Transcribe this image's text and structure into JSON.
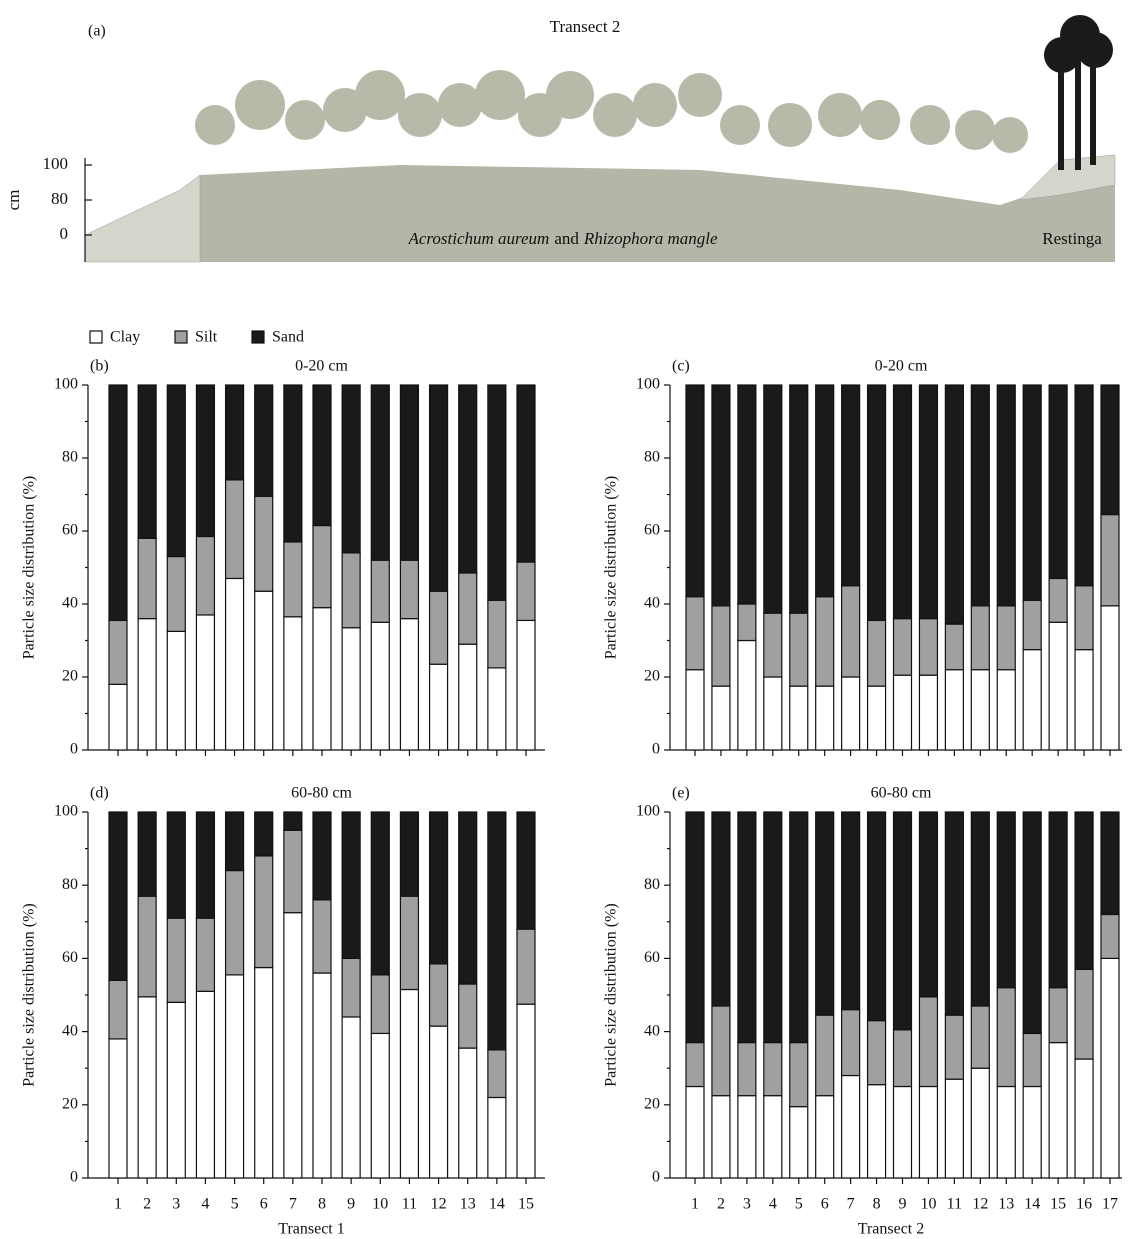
{
  "profile": {
    "label": "(a)",
    "title": "Transect 2",
    "y_label": "cm",
    "y_labels": [
      "100",
      "80",
      "0"
    ],
    "species_label": [
      "Acrostichum aureum",
      "and",
      "Rhizophora mangle"
    ],
    "zone_label": "Restinga"
  },
  "chart_data": [
    {
      "type": "stacked_bar",
      "panel": "(b)",
      "title": "0-20 cm",
      "y_label": "Particle size distribution (%)",
      "categories": [
        null,
        null,
        null,
        null,
        null,
        null,
        null,
        null,
        null,
        null,
        null,
        null,
        null,
        null,
        null
      ],
      "ylim": [
        0,
        100
      ],
      "yticks": [
        0,
        20,
        40,
        60,
        80,
        100
      ],
      "series": [
        {
          "name": "Clay",
          "color": "#ffffff",
          "values": [
            18,
            36,
            32.5,
            37,
            47,
            43.5,
            36.5,
            39,
            33.5,
            35,
            36,
            23.5,
            29,
            22.5,
            35.5
          ]
        },
        {
          "name": "Silt",
          "color": "#a0a0a0",
          "values": [
            17.5,
            22,
            20.5,
            21.5,
            27,
            26,
            20.5,
            22.5,
            20.5,
            17,
            16,
            20,
            19.5,
            18.5,
            16
          ]
        },
        {
          "name": "Sand",
          "color": "#1a1a1a",
          "values": [
            64.5,
            42,
            47,
            41.5,
            26,
            30.5,
            43,
            38.5,
            46,
            48,
            48,
            56.5,
            51.5,
            59,
            48.5
          ]
        }
      ]
    },
    {
      "type": "stacked_bar",
      "panel": "(c)",
      "title": "0-20 cm",
      "y_label": "Particle size distribution (%)",
      "categories": [
        null,
        null,
        null,
        null,
        null,
        null,
        null,
        null,
        null,
        null,
        null,
        null,
        null,
        null,
        null,
        null,
        null
      ],
      "ylim": [
        0,
        100
      ],
      "yticks": [
        0,
        20,
        40,
        60,
        80,
        100
      ],
      "series": [
        {
          "color": "#ffffff",
          "values": [
            22,
            17.5,
            30,
            20,
            17.5,
            17.5,
            20,
            17.5,
            20.5,
            20.5,
            22,
            22,
            22,
            27.5,
            35,
            27.5,
            39.5
          ]
        },
        {
          "color": "#a0a0a0",
          "values": [
            20,
            22,
            10,
            17.5,
            20,
            24.5,
            25,
            18,
            15.5,
            15.5,
            12.5,
            17.5,
            17.5,
            13.5,
            12,
            17.5,
            25
          ]
        },
        {
          "color": "#1a1a1a",
          "values": [
            58,
            60.5,
            60,
            62.5,
            62.5,
            58,
            55,
            64.5,
            64,
            64,
            65.5,
            60.5,
            60.5,
            59,
            53,
            55,
            35.5
          ]
        }
      ]
    },
    {
      "type": "stacked_bar",
      "panel": "(d)",
      "title": "60-80 cm",
      "y_label": "Particle size distribution (%)",
      "x_label": "Transect 1",
      "categories": [
        1,
        2,
        3,
        4,
        5,
        6,
        7,
        8,
        9,
        10,
        11,
        12,
        13,
        14,
        15
      ],
      "ylim": [
        0,
        100
      ],
      "yticks": [
        0,
        20,
        40,
        60,
        80,
        100
      ],
      "series": [
        {
          "color": "#ffffff",
          "values": [
            38,
            49.5,
            48,
            51,
            55.5,
            57.5,
            72.5,
            56,
            44,
            39.5,
            51.5,
            41.5,
            35.5,
            22,
            47.5
          ]
        },
        {
          "color": "#a0a0a0",
          "values": [
            16,
            27.5,
            23,
            20,
            28.5,
            30.5,
            22.5,
            20,
            16,
            16,
            25.5,
            17,
            17.5,
            13,
            20.5
          ]
        },
        {
          "color": "#1a1a1a",
          "values": [
            46,
            23,
            29,
            29,
            16,
            12,
            5,
            24,
            40,
            44.5,
            23,
            41.5,
            47,
            65,
            32
          ]
        }
      ]
    },
    {
      "type": "stacked_bar",
      "panel": "(e)",
      "title": "60-80 cm",
      "y_label": "Particle size distribution (%)",
      "x_label": "Transect 2",
      "categories": [
        1,
        2,
        3,
        4,
        5,
        6,
        7,
        8,
        9,
        10,
        11,
        12,
        13,
        14,
        15,
        16,
        17
      ],
      "ylim": [
        0,
        100
      ],
      "yticks": [
        0,
        20,
        40,
        60,
        80,
        100
      ],
      "series": [
        {
          "color": "#ffffff",
          "values": [
            25,
            22.5,
            22.5,
            22.5,
            19.5,
            22.5,
            28,
            25.5,
            25,
            25,
            27,
            30,
            25,
            25,
            37,
            32.5,
            60
          ]
        },
        {
          "color": "#a0a0a0",
          "values": [
            12,
            24.5,
            14.5,
            14.5,
            17.5,
            22,
            18,
            17.5,
            15.5,
            24.5,
            17.5,
            17,
            27,
            14.5,
            15,
            24.5,
            12
          ]
        },
        {
          "color": "#1a1a1a",
          "values": [
            63,
            53,
            63,
            63,
            63,
            55.5,
            54,
            57,
            59.5,
            50.5,
            55.5,
            53,
            48,
            60.5,
            48,
            43,
            28
          ]
        }
      ]
    }
  ]
}
